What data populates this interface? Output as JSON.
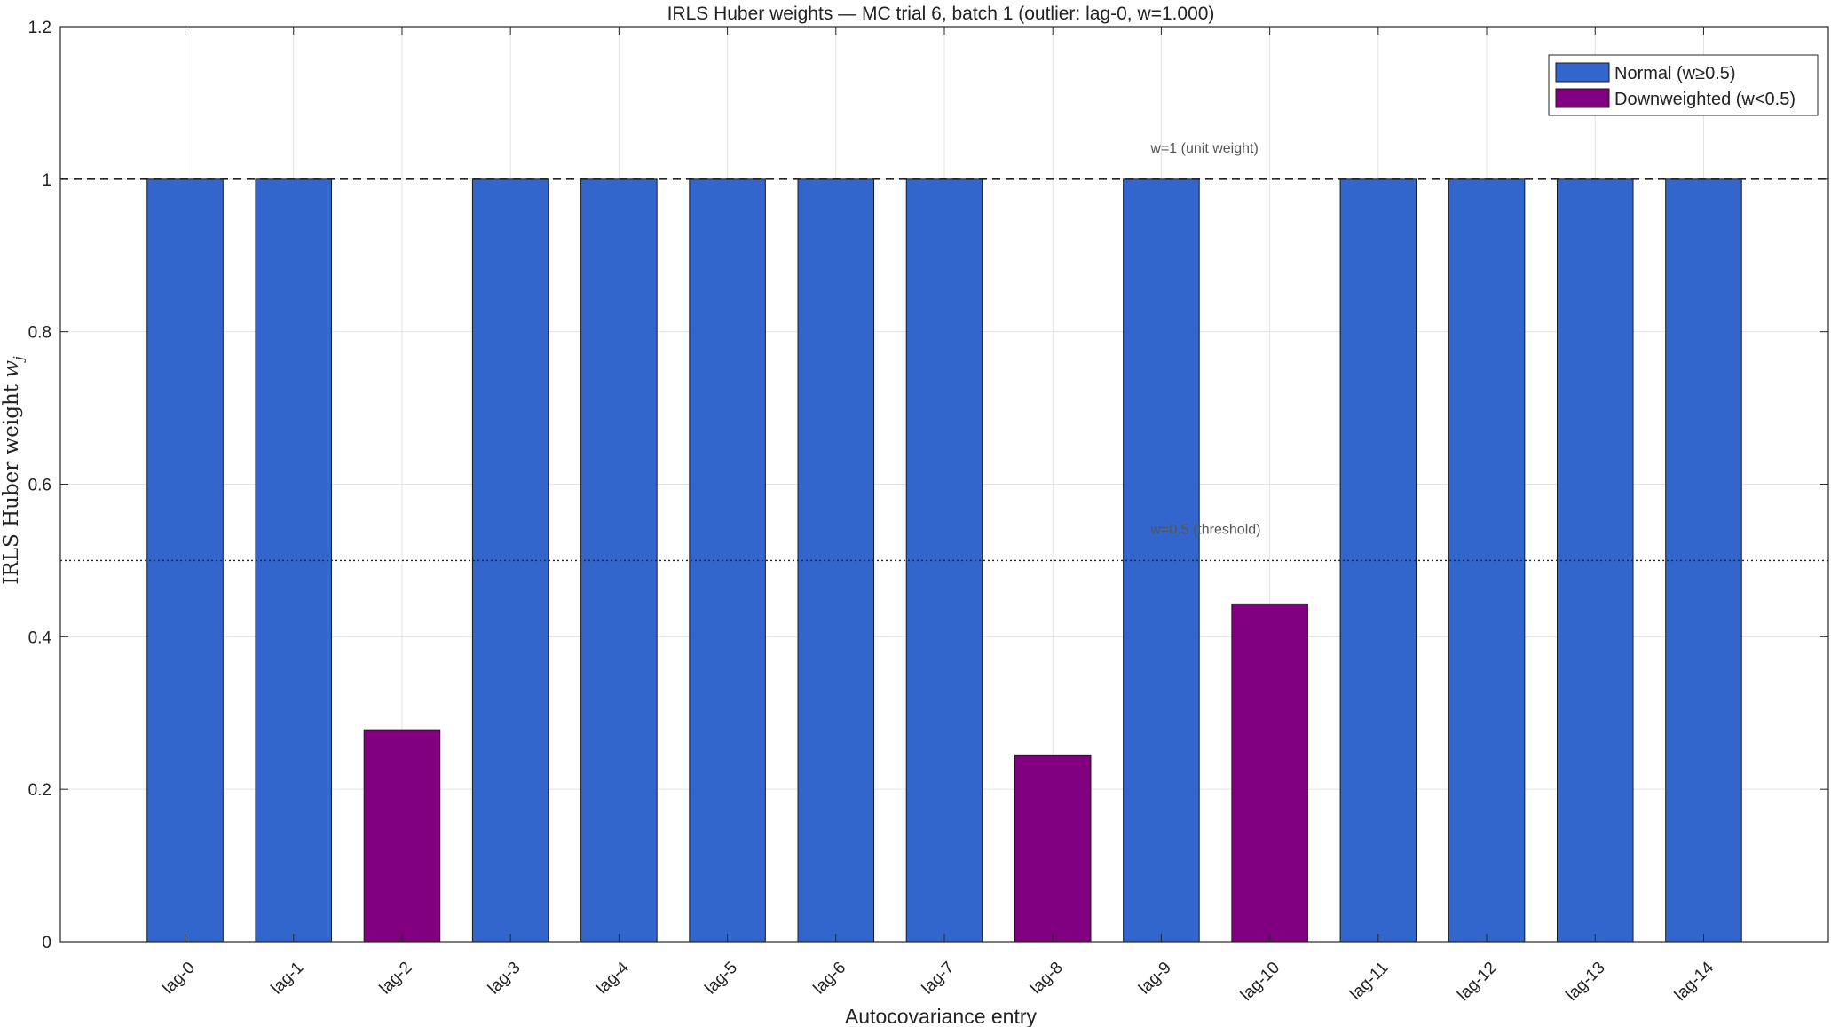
{
  "chart_data": {
    "type": "bar",
    "title": "IRLS Huber weights — MC trial 6, batch 1  (outlier: lag-0, w=1.000)",
    "xlabel": "Autocovariance entry",
    "ylabel": "IRLS Huber weight",
    "ylabel_math": "w",
    "ylabel_math_sub": "j",
    "categories": [
      "lag-0",
      "lag-1",
      "lag-2",
      "lag-3",
      "lag-4",
      "lag-5",
      "lag-6",
      "lag-7",
      "lag-8",
      "lag-9",
      "lag-10",
      "lag-11",
      "lag-12",
      "lag-13",
      "lag-14"
    ],
    "values": [
      1.0,
      1.0,
      0.278,
      1.0,
      1.0,
      1.0,
      1.0,
      1.0,
      0.244,
      1.0,
      0.443,
      1.0,
      1.0,
      1.0,
      1.0
    ],
    "ylim": [
      0,
      1.2
    ],
    "yticks": [
      0,
      0.2,
      0.4,
      0.6,
      0.8,
      1,
      1.2
    ],
    "ytick_labels": [
      "0",
      "0.2",
      "0.4",
      "0.6",
      "0.8",
      "1",
      "1.2"
    ],
    "threshold": 0.5,
    "grid": true,
    "legend_position": "top-right",
    "legend": [
      {
        "label": "Normal (w≥0.5)",
        "color": "#3366cc"
      },
      {
        "label": "Downweighted (w<0.5)",
        "color": "#800080"
      }
    ],
    "reference_lines": [
      {
        "y": 1.0,
        "style": "dashed",
        "label": "w=1 (unit weight)"
      },
      {
        "y": 0.5,
        "style": "dotted",
        "label": "w=0.5 (threshold)"
      }
    ],
    "colors": {
      "normal": "#3366cc",
      "downweighted": "#800080"
    }
  }
}
